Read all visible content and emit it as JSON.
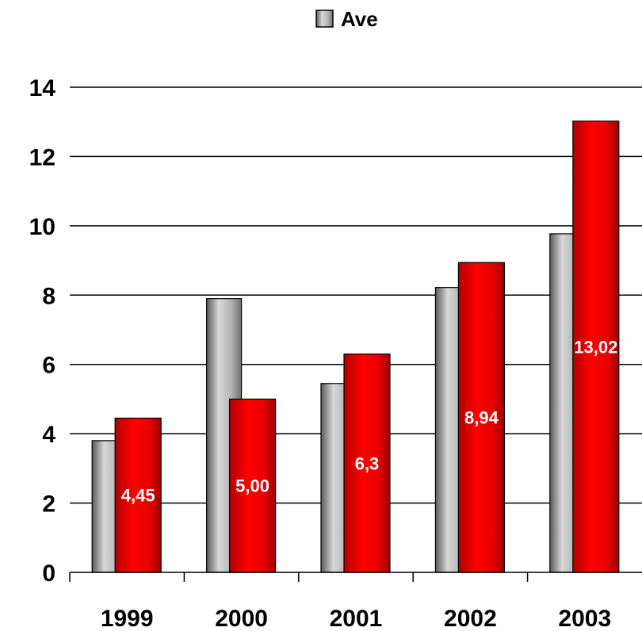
{
  "chart_data": {
    "type": "bar",
    "categories": [
      "1999",
      "2000",
      "2001",
      "2002",
      "2003"
    ],
    "series": [
      {
        "name": "Ave",
        "values": [
          3.8,
          7.9,
          5.45,
          8.22,
          9.77
        ],
        "color": "#a8a8a8"
      },
      {
        "name": "",
        "values": [
          4.45,
          5.0,
          6.3,
          8.94,
          13.02
        ],
        "color": "#e00000",
        "data_labels": [
          "4,45",
          "5,00",
          "6,3",
          "8,94",
          "13,02"
        ]
      }
    ],
    "yticks": [
      "0",
      "2",
      "4",
      "6",
      "8",
      "10",
      "12",
      "14"
    ],
    "ylim": [
      0,
      14
    ],
    "grid": true,
    "legend": "top-center"
  }
}
